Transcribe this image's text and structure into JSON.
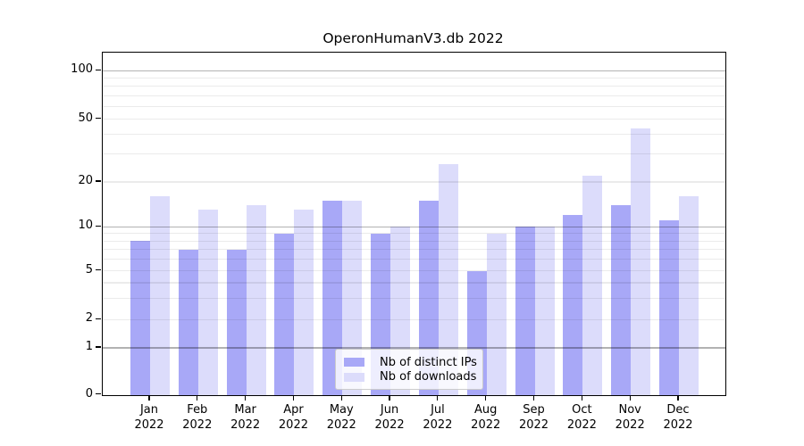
{
  "chart_data": {
    "type": "bar",
    "title": "OperonHumanV3.db 2022",
    "categories": [
      "Jan",
      "Feb",
      "Mar",
      "Apr",
      "May",
      "Jun",
      "Jul",
      "Aug",
      "Sep",
      "Oct",
      "Nov",
      "Dec"
    ],
    "category_year_label": "2022",
    "series": [
      {
        "name": "Nb of distinct IPs",
        "color": "#a8a8f7",
        "values": [
          8,
          7,
          7,
          9,
          15,
          9,
          15,
          5,
          10,
          12,
          14,
          11
        ]
      },
      {
        "name": "Nb of downloads",
        "color": "#dcdcfb",
        "values": [
          16,
          13,
          14,
          13,
          15,
          10,
          26,
          9,
          10,
          22,
          44,
          16
        ]
      }
    ],
    "y_axis": {
      "scale": "symlog",
      "tick_labels": [
        "0",
        "1",
        "2",
        "5",
        "10",
        "20",
        "50",
        "100"
      ],
      "tick_values": [
        0,
        1,
        2,
        5,
        10,
        20,
        50,
        100
      ],
      "major_grid_values": [
        1,
        10,
        100
      ],
      "minor_grid_values": [
        2,
        3,
        4,
        5,
        6,
        7,
        8,
        9,
        20,
        30,
        40,
        50,
        60,
        70,
        80,
        90
      ],
      "range": [
        0,
        112
      ]
    },
    "legend": {
      "position": "lower center"
    },
    "grid": "both",
    "colors": {
      "distinct_ips": "#a8a8f7",
      "downloads": "#dcdcfb",
      "major_grid": "#b3b3b3",
      "minor_grid": "#ebebeb",
      "axis": "#000000"
    }
  }
}
